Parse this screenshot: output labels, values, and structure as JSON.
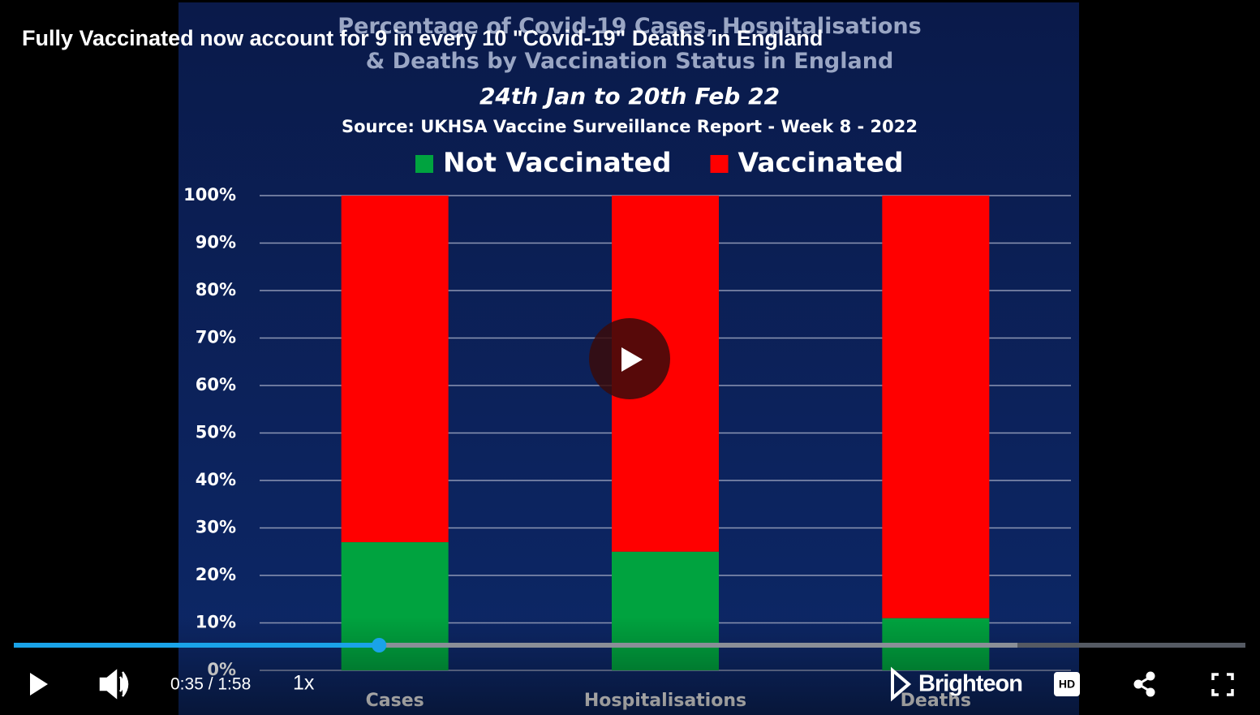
{
  "video": {
    "title": "Fully Vaccinated now account for 9 in every 10 \"Covid-19\" Deaths in England",
    "time": "0:35 / 1:58",
    "speed": "1x",
    "brand": "Brighteon",
    "quality": "HD"
  },
  "chart_data": {
    "type": "bar",
    "stacked": true,
    "title": "Percentage of Covid-19 Cases, Hospitalisations & Deaths by Vaccination Status in England",
    "subtitle": "24th Jan to 20th Feb 22",
    "source": "Source: UKHSA Vaccine Surveillance Report - Week 8 - 2022",
    "categories": [
      "Cases",
      "Hospitalisations",
      "Deaths"
    ],
    "series": [
      {
        "name": "Not Vaccinated",
        "color": "#00a33f",
        "values": [
          27,
          25,
          11
        ]
      },
      {
        "name": "Vaccinated",
        "color": "#ff0000",
        "values": [
          73,
          75,
          89
        ]
      }
    ],
    "ylim": [
      0,
      100
    ],
    "yticks": [
      {
        "value": 0,
        "label": "0%"
      },
      {
        "value": 10,
        "label": "10%"
      },
      {
        "value": 20,
        "label": "20%"
      },
      {
        "value": 30,
        "label": "30%"
      },
      {
        "value": 40,
        "label": "40%"
      },
      {
        "value": 50,
        "label": "50%"
      },
      {
        "value": 60,
        "label": "60%"
      },
      {
        "value": 70,
        "label": "70%"
      },
      {
        "value": 80,
        "label": "80%"
      },
      {
        "value": 90,
        "label": "90%"
      },
      {
        "value": 100,
        "label": "100%"
      }
    ],
    "grid": true,
    "legend": "top"
  }
}
